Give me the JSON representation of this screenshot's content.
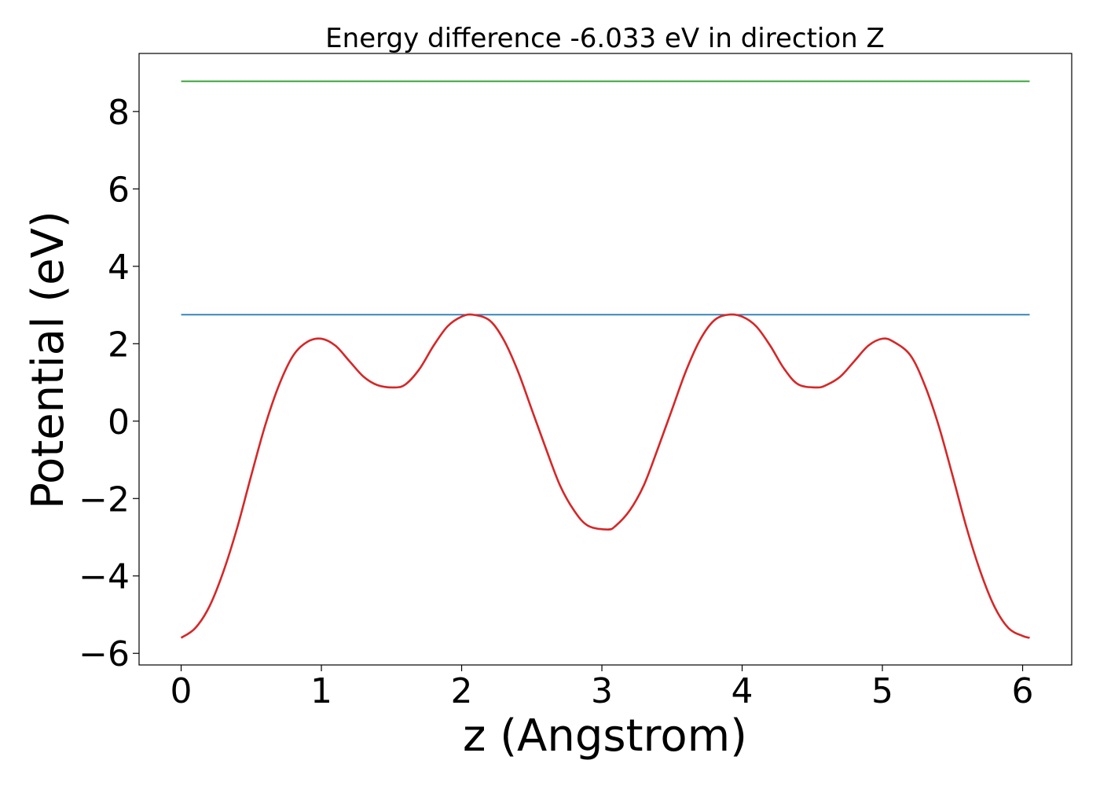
{
  "chart_data": {
    "type": "line",
    "title": "Energy difference -6.033 eV in direction Z",
    "xlabel": "z (Angstrom)",
    "ylabel": "Potential (eV)",
    "xlim": [
      -0.3,
      6.35
    ],
    "ylim": [
      -6.3,
      9.5
    ],
    "xticks": [
      0,
      1,
      2,
      3,
      4,
      5,
      6
    ],
    "xtick_labels": [
      "0",
      "1",
      "2",
      "3",
      "4",
      "5",
      "6"
    ],
    "yticks": [
      -6,
      -4,
      -2,
      0,
      2,
      4,
      6,
      8
    ],
    "ytick_labels": [
      "−6",
      "−4",
      "−2",
      "0",
      "2",
      "4",
      "6",
      "8"
    ],
    "grid": false,
    "series": [
      {
        "color": "#d62728",
        "x": [
          0,
          0.1,
          0.2,
          0.3,
          0.4,
          0.5,
          0.6,
          0.7,
          0.8,
          0.9,
          1.0,
          1.1,
          1.2,
          1.3,
          1.4,
          1.52,
          1.6,
          1.7,
          1.8,
          1.9,
          2.0,
          2.08,
          2.2,
          2.3,
          2.4,
          2.5,
          2.6,
          2.7,
          2.8,
          2.9,
          3.04,
          3.1,
          3.2,
          3.3,
          3.4,
          3.5,
          3.6,
          3.7,
          3.8,
          3.9,
          4.0,
          4.1,
          4.2,
          4.3,
          4.4,
          4.53,
          4.6,
          4.7,
          4.8,
          4.9,
          5.0,
          5.08,
          5.2,
          5.3,
          5.4,
          5.5,
          5.6,
          5.7,
          5.8,
          5.9,
          6.0,
          6.05
        ],
        "y": [
          -5.6,
          -5.35,
          -4.8,
          -3.9,
          -2.75,
          -1.4,
          -0.1,
          0.95,
          1.7,
          2.05,
          2.13,
          1.95,
          1.55,
          1.15,
          0.93,
          0.87,
          0.95,
          1.35,
          1.95,
          2.45,
          2.7,
          2.75,
          2.6,
          2.1,
          1.3,
          0.3,
          -0.7,
          -1.65,
          -2.3,
          -2.7,
          -2.8,
          -2.7,
          -2.3,
          -1.65,
          -0.7,
          0.3,
          1.3,
          2.1,
          2.6,
          2.75,
          2.7,
          2.45,
          1.95,
          1.35,
          0.95,
          0.87,
          0.93,
          1.15,
          1.55,
          1.95,
          2.13,
          2.05,
          1.7,
          0.95,
          -0.1,
          -1.4,
          -2.75,
          -3.9,
          -4.8,
          -5.35,
          -5.55,
          -5.6
        ]
      },
      {
        "color": "#1f77b4",
        "x": [
          0,
          6.05
        ],
        "y": [
          2.75,
          2.75
        ]
      },
      {
        "color": "#2ca02c",
        "x": [
          0,
          6.05
        ],
        "y": [
          8.78,
          8.78
        ]
      }
    ]
  }
}
